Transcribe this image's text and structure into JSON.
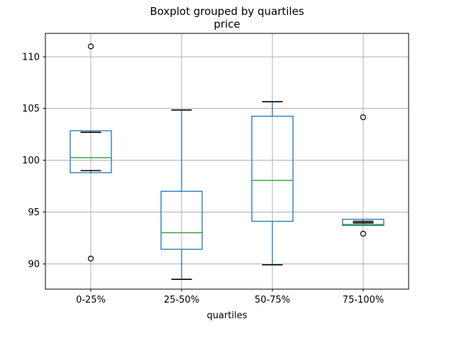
{
  "figure": {
    "suptitle": "Boxplot grouped by quartiles",
    "axes_title": "price",
    "background_color": "#ffffff"
  },
  "chart_data": {
    "type": "boxplot",
    "title": "Boxplot grouped by quartiles",
    "subtitle": "price",
    "xlabel": "quartiles",
    "ylabel": "",
    "categories": [
      "0-25%",
      "25-50%",
      "50-75%",
      "75-100%"
    ],
    "yticks": [
      90,
      95,
      100,
      105,
      110
    ],
    "ylim": [
      87.55,
      112.25
    ],
    "grid": true,
    "legend": false,
    "series": [
      {
        "category": "0-25%",
        "whisker_low": 99.0,
        "q1": 98.8,
        "median": 100.25,
        "q3": 102.85,
        "whisker_high": 102.7,
        "outliers": [
          111.0,
          90.5
        ]
      },
      {
        "category": "25-50%",
        "whisker_low": 88.5,
        "q1": 91.4,
        "median": 93.0,
        "q3": 97.0,
        "whisker_high": 104.85,
        "outliers": []
      },
      {
        "category": "50-75%",
        "whisker_low": 89.9,
        "q1": 94.1,
        "median": 98.05,
        "q3": 104.25,
        "whisker_high": 105.65,
        "outliers": []
      },
      {
        "category": "75-100%",
        "whisker_low": 93.95,
        "q1": 93.7,
        "median": 93.8,
        "q3": 94.3,
        "whisker_high": 94.1,
        "outliers": [
          104.15,
          92.9
        ]
      }
    ],
    "colors": {
      "box": "#1f77b4",
      "whisker": "#1f77b4",
      "median": "#2ca02c",
      "cap": "#000000",
      "outlier_edge": "#000000",
      "grid": "#b0b0b0",
      "spine": "#000000",
      "text": "#000000"
    }
  }
}
